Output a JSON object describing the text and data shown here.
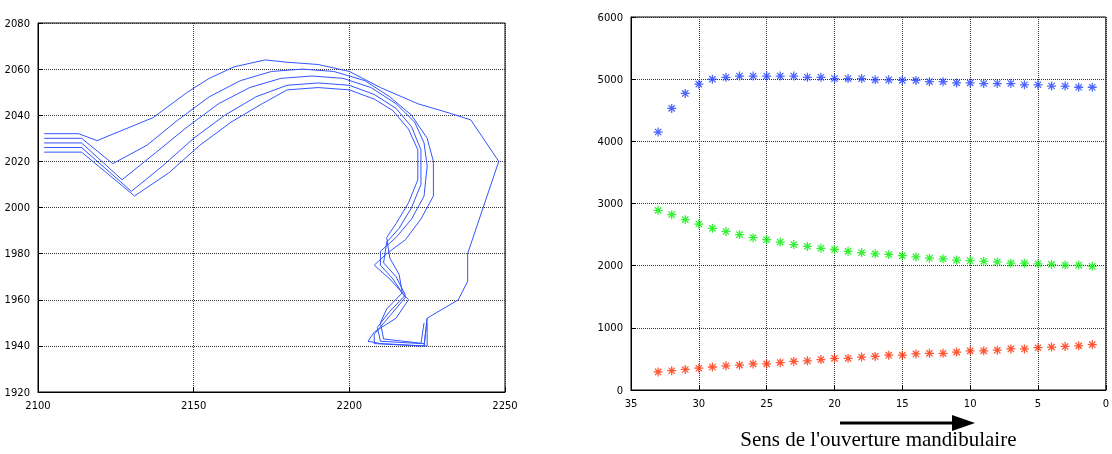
{
  "chart_data": [
    {
      "type": "line",
      "xlim": [
        2100,
        2250
      ],
      "xticks": [
        2100,
        2150,
        2200,
        2250
      ],
      "ylim": [
        1920,
        2080
      ],
      "yticks": [
        1920,
        1940,
        1960,
        1980,
        2000,
        2020,
        2040,
        2060,
        2080
      ],
      "grid": true,
      "marker": "none",
      "line_style": "solid",
      "series": [
        {
          "color": "#3355ff",
          "x": [
            2102,
            2113,
            2119,
            2128,
            2137,
            2148,
            2155,
            2163,
            2173,
            2180,
            2190,
            2200,
            2210,
            2222,
            2232,
            2239,
            2248,
            2245,
            2241,
            2238,
            2238,
            2235,
            2225,
            2224
          ],
          "values": [
            2032,
            2032,
            2029,
            2034,
            2039,
            2050,
            2056,
            2061,
            2064,
            2063,
            2062,
            2059,
            2052,
            2045,
            2041,
            2038,
            2020,
            2008,
            1992,
            1980,
            1968,
            1960,
            1952,
            1940
          ]
        },
        {
          "color": "#3355ff",
          "x": [
            2102,
            2114,
            2124,
            2135,
            2145,
            2155,
            2165,
            2175,
            2185,
            2195,
            2205,
            2213,
            2220,
            2225,
            2227,
            2227,
            2223,
            2218,
            2212,
            2208,
            2213,
            2219,
            2215,
            2208,
            2206,
            2210,
            2224,
            2225
          ],
          "values": [
            2030,
            2030,
            2019,
            2027,
            2038,
            2048,
            2055,
            2059,
            2060,
            2059,
            2055,
            2048,
            2040,
            2030,
            2020,
            2005,
            1995,
            1986,
            1980,
            1975,
            1969,
            1960,
            1952,
            1946,
            1942,
            1941,
            1940,
            1952
          ]
        },
        {
          "color": "#3355ff",
          "x": [
            2102,
            2114,
            2127,
            2138,
            2148,
            2158,
            2168,
            2178,
            2188,
            2198,
            2207,
            2215,
            2221,
            2224,
            2225,
            2224,
            2220,
            2215,
            2210,
            2210,
            2214,
            2218,
            2213,
            2208,
            2208,
            2222,
            2225,
            2225
          ],
          "values": [
            2028,
            2028,
            2012,
            2024,
            2035,
            2045,
            2052,
            2056,
            2057,
            2056,
            2052,
            2045,
            2037,
            2028,
            2018,
            2005,
            1995,
            1987,
            1981,
            1975,
            1969,
            1961,
            1953,
            1945,
            1941,
            1940,
            1940,
            1950
          ]
        },
        {
          "color": "#3355ff",
          "x": [
            2102,
            2114,
            2130,
            2140,
            2150,
            2160,
            2170,
            2180,
            2190,
            2200,
            2208,
            2215,
            2220,
            2223,
            2223,
            2220,
            2216,
            2212,
            2211,
            2215,
            2218,
            2213,
            2209,
            2210,
            2223,
            2224
          ],
          "values": [
            2026,
            2026,
            2007,
            2018,
            2030,
            2040,
            2048,
            2053,
            2054,
            2053,
            2049,
            2043,
            2035,
            2025,
            2010,
            2000,
            1991,
            1985,
            1976,
            1970,
            1962,
            1955,
            1948,
            1942,
            1941,
            1950
          ]
        },
        {
          "color": "#3355ff",
          "x": [
            2102,
            2114,
            2131,
            2142,
            2152,
            2162,
            2172,
            2180,
            2190,
            2200,
            2208,
            2214,
            2219,
            2222,
            2222,
            2219,
            2215,
            2212,
            2213,
            2216,
            2217,
            2212,
            2210,
            2211,
            2224
          ],
          "values": [
            2024,
            2024,
            2005,
            2015,
            2027,
            2037,
            2045,
            2051,
            2052,
            2051,
            2047,
            2042,
            2034,
            2025,
            2012,
            2002,
            1993,
            1987,
            1978,
            1971,
            1963,
            1956,
            1950,
            1943,
            1941
          ]
        }
      ]
    },
    {
      "type": "scatter",
      "xlabel": "Sens de l'ouverture mandibulaire",
      "xlim": [
        35,
        0
      ],
      "xticks": [
        35,
        30,
        25,
        20,
        15,
        10,
        5,
        0
      ],
      "ylim": [
        0,
        6000
      ],
      "yticks": [
        0,
        1000,
        2000,
        3000,
        4000,
        5000,
        6000
      ],
      "grid": true,
      "marker": "star",
      "x": [
        33,
        32,
        31,
        30,
        29,
        28,
        27,
        26,
        25,
        24,
        23,
        22,
        21,
        20,
        19,
        18,
        17,
        16,
        15,
        14,
        13,
        12,
        11,
        10,
        9,
        8,
        7,
        6,
        5,
        4,
        3,
        2,
        1
      ],
      "series": [
        {
          "color": "#1f3fff",
          "values": [
            4150,
            4530,
            4770,
            4920,
            5000,
            5030,
            5050,
            5050,
            5050,
            5050,
            5050,
            5030,
            5030,
            5010,
            5010,
            5010,
            4990,
            4990,
            4980,
            4980,
            4960,
            4960,
            4940,
            4940,
            4930,
            4930,
            4930,
            4910,
            4910,
            4890,
            4890,
            4870,
            4870
          ]
        },
        {
          "color": "#00ee00",
          "values": [
            2890,
            2820,
            2740,
            2670,
            2600,
            2550,
            2500,
            2450,
            2420,
            2380,
            2340,
            2310,
            2280,
            2260,
            2230,
            2210,
            2190,
            2180,
            2160,
            2140,
            2120,
            2110,
            2090,
            2080,
            2070,
            2060,
            2040,
            2040,
            2030,
            2020,
            2010,
            2010,
            1990
          ]
        },
        {
          "color": "#ff2a00",
          "values": [
            290,
            310,
            330,
            350,
            370,
            390,
            400,
            420,
            420,
            440,
            460,
            470,
            490,
            510,
            510,
            530,
            540,
            560,
            560,
            580,
            590,
            590,
            610,
            630,
            630,
            640,
            660,
            660,
            680,
            690,
            700,
            710,
            730
          ]
        }
      ]
    }
  ]
}
